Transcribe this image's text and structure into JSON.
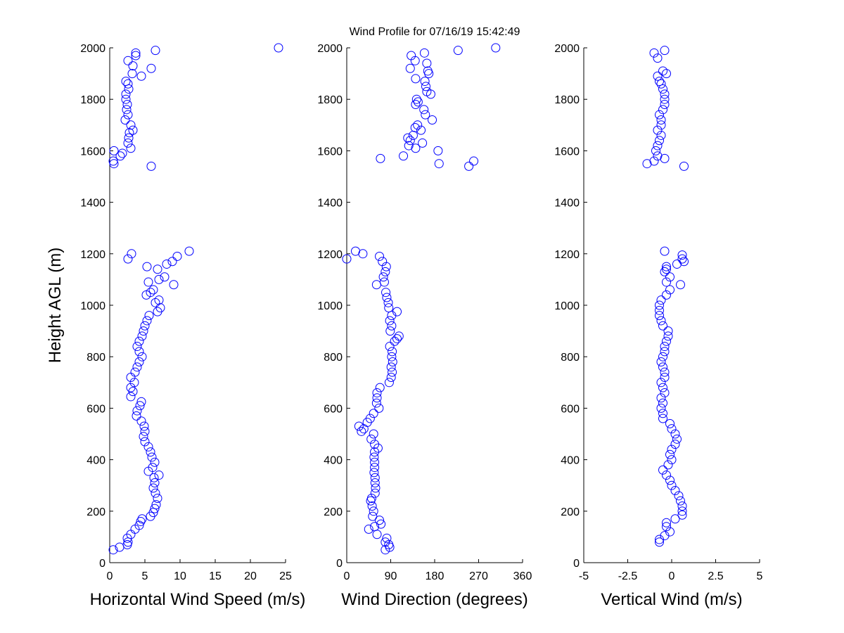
{
  "chart_data": [
    {
      "type": "scatter",
      "xlabel": "Horizontal Wind Speed (m/s)",
      "ylabel": "Height AGL (m)",
      "color": "#0000ff",
      "x": [
        0.5,
        1.4,
        2.5,
        2.6,
        2.5,
        3.0,
        3.6,
        4.2,
        4.4,
        4.6,
        5.8,
        6.2,
        6.4,
        6.6,
        6.8,
        6.5,
        6.2,
        6.4,
        6.3,
        7.0,
        5.5,
        6.1,
        6.4,
        6.0,
        5.8,
        5.5,
        5.0,
        4.8,
        5.0,
        4.9,
        4.5,
        3.8,
        3.9,
        4.3,
        4.5,
        3.0,
        3.3,
        3.0,
        3.5,
        3.0,
        3.6,
        3.9,
        4.2,
        4.6,
        4.2,
        3.9,
        4.2,
        4.6,
        4.8,
        5.0,
        5.3,
        5.6,
        6.8,
        7.2,
        6.5,
        7.0,
        5.2,
        5.8,
        6.2,
        9.1,
        5.5,
        7.0,
        7.8,
        6.8,
        5.3,
        8.1,
        8.9,
        2.6,
        9.6,
        3.1,
        11.3,
        5.9,
        0.6,
        0.5,
        1.5,
        1.8,
        0.6,
        3.0,
        2.6,
        2.7,
        2.8,
        3.3,
        3.0,
        2.2,
        2.6,
        2.4,
        2.5,
        2.3,
        2.3,
        2.7,
        2.6,
        2.3,
        4.5,
        3.2,
        5.9,
        3.3,
        2.6,
        3.7,
        3.7,
        6.5,
        24.0
      ],
      "values": [
        50,
        60,
        70,
        80,
        95,
        110,
        130,
        145,
        160,
        170,
        180,
        195,
        210,
        225,
        250,
        270,
        290,
        310,
        330,
        340,
        355,
        370,
        390,
        410,
        430,
        450,
        470,
        490,
        510,
        530,
        550,
        570,
        590,
        610,
        625,
        645,
        665,
        680,
        700,
        720,
        740,
        760,
        780,
        800,
        820,
        840,
        860,
        880,
        900,
        920,
        940,
        960,
        975,
        990,
        1010,
        1020,
        1040,
        1050,
        1060,
        1080,
        1090,
        1100,
        1110,
        1140,
        1150,
        1160,
        1170,
        1180,
        1190,
        1200,
        1210,
        1540,
        1550,
        1560,
        1580,
        1590,
        1600,
        1610,
        1630,
        1650,
        1670,
        1680,
        1700,
        1720,
        1740,
        1760,
        1780,
        1800,
        1820,
        1840,
        1860,
        1870,
        1890,
        1900,
        1920,
        1930,
        1950,
        1970,
        1980,
        1990,
        2000
      ],
      "xlim": [
        0,
        25
      ],
      "xticks": [
        0,
        5,
        10,
        15,
        20,
        25
      ],
      "ylim": [
        0,
        2000
      ],
      "yticks": [
        0,
        200,
        400,
        600,
        800,
        1000,
        1200,
        1400,
        1600,
        1800,
        2000
      ]
    },
    {
      "type": "scatter",
      "title": "Wind Profile for  07/16/19 15:42:49",
      "xlabel": "Wind Direction (degrees)",
      "color": "#0000ff",
      "x": [
        79,
        88,
        86,
        79,
        82,
        62,
        45,
        57,
        70,
        67,
        53,
        55,
        52,
        49,
        51,
        58,
        59,
        58,
        58,
        56,
        57,
        57,
        56,
        57,
        64,
        57,
        50,
        55,
        30,
        35,
        25,
        42,
        48,
        55,
        66,
        61,
        62,
        62,
        68,
        87,
        91,
        93,
        91,
        94,
        92,
        93,
        88,
        98,
        103,
        107,
        89,
        92,
        88,
        92,
        103,
        86,
        85,
        82,
        80,
        61,
        77,
        75,
        79,
        81,
        73,
        67,
        0,
        33,
        18,
        250,
        189,
        260,
        69,
        116,
        187,
        141,
        127,
        155,
        130,
        125,
        136,
        152,
        140,
        145,
        175,
        161,
        158,
        141,
        146,
        143,
        172,
        164,
        162,
        160,
        141,
        168,
        166,
        130,
        164,
        140,
        132,
        159,
        228,
        305
      ],
      "values": [
        50,
        60,
        70,
        80,
        95,
        110,
        130,
        140,
        150,
        165,
        180,
        200,
        220,
        240,
        250,
        270,
        290,
        310,
        330,
        350,
        370,
        390,
        410,
        430,
        445,
        460,
        480,
        500,
        510,
        520,
        530,
        545,
        560,
        580,
        600,
        620,
        640,
        660,
        680,
        700,
        720,
        740,
        760,
        780,
        800,
        820,
        840,
        860,
        870,
        880,
        900,
        920,
        940,
        960,
        975,
        990,
        1010,
        1030,
        1050,
        1080,
        1090,
        1110,
        1130,
        1150,
        1170,
        1190,
        1180,
        1200,
        1210,
        1540,
        1550,
        1560,
        1570,
        1580,
        1600,
        1610,
        1620,
        1630,
        1640,
        1650,
        1660,
        1680,
        1690,
        1700,
        1720,
        1740,
        1760,
        1780,
        1790,
        1800,
        1820,
        1830,
        1850,
        1870,
        1880,
        1900,
        1910,
        1920,
        1940,
        1950,
        1970,
        1980,
        1990,
        2000
      ],
      "xlim": [
        0,
        360
      ],
      "xticks": [
        0,
        90,
        180,
        270,
        360
      ],
      "ylim": [
        0,
        2000
      ],
      "yticks": [
        0,
        200,
        400,
        600,
        800,
        1000,
        1200,
        1400,
        1600,
        1800,
        2000
      ]
    },
    {
      "type": "scatter",
      "xlabel": "Vertical Wind (m/s)",
      "color": "#0000ff",
      "x": [
        -0.7,
        -0.7,
        -0.4,
        -0.1,
        -0.3,
        -0.3,
        0.2,
        0.6,
        0.6,
        0.6,
        0.5,
        0.4,
        0.2,
        0,
        -0.1,
        -0.3,
        -0.5,
        -0.2,
        0,
        -0.1,
        0,
        0.2,
        0.3,
        0.2,
        0,
        -0.1,
        -0.5,
        -0.5,
        -0.6,
        -0.5,
        -0.6,
        -0.4,
        -0.5,
        -0.6,
        -0.4,
        -0.4,
        -0.5,
        -0.6,
        -0.5,
        -0.4,
        -0.4,
        -0.3,
        -0.2,
        -0.2,
        -0.5,
        -0.6,
        -0.7,
        -0.7,
        -0.7,
        -0.6,
        -0.3,
        -0.1,
        0.5,
        -0.3,
        -0.1,
        -0.4,
        -0.3,
        -0.3,
        0.3,
        0.7,
        0.6,
        0.6,
        -0.4,
        0.7,
        -1.4,
        -1.0,
        -0.4,
        -0.8,
        -0.9,
        -0.8,
        -0.7,
        -0.6,
        -0.8,
        -0.6,
        -0.6,
        -0.7,
        -0.5,
        -0.4,
        -0.4,
        -0.4,
        -0.5,
        -0.6,
        -0.7,
        -0.8,
        -0.3,
        -0.5,
        -0.8,
        -1.0,
        -0.4
      ],
      "values": [
        80,
        90,
        105,
        120,
        140,
        155,
        170,
        185,
        200,
        220,
        240,
        260,
        280,
        300,
        320,
        340,
        360,
        380,
        400,
        420,
        440,
        460,
        480,
        500,
        520,
        540,
        560,
        580,
        600,
        620,
        640,
        660,
        680,
        700,
        720,
        740,
        760,
        780,
        800,
        820,
        840,
        860,
        880,
        900,
        920,
        940,
        960,
        980,
        1000,
        1020,
        1040,
        1060,
        1080,
        1090,
        1110,
        1130,
        1140,
        1150,
        1160,
        1170,
        1180,
        1195,
        1210,
        1540,
        1550,
        1560,
        1570,
        1580,
        1600,
        1620,
        1640,
        1660,
        1680,
        1700,
        1720,
        1740,
        1760,
        1780,
        1800,
        1820,
        1840,
        1860,
        1870,
        1890,
        1900,
        1910,
        1960,
        1980,
        1990
      ],
      "xlim": [
        -5,
        5
      ],
      "xticks": [
        -5,
        -2.5,
        0,
        2.5,
        5
      ],
      "ylim": [
        0,
        2000
      ],
      "yticks": [
        0,
        200,
        400,
        600,
        800,
        1000,
        1200,
        1400,
        1600,
        1800,
        2000
      ]
    }
  ]
}
